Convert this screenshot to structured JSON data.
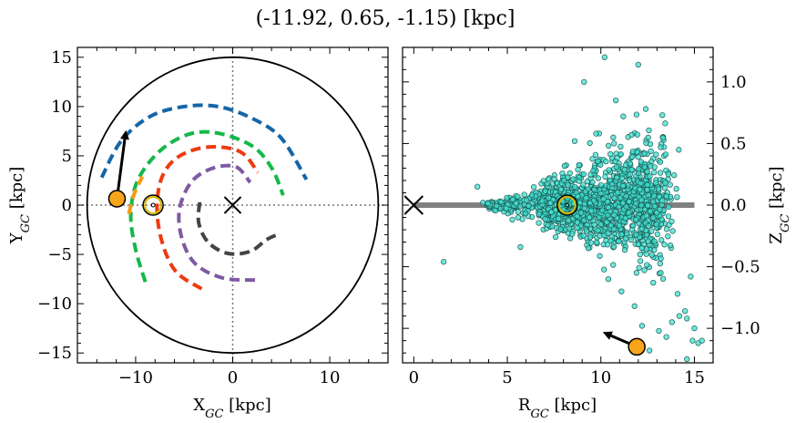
{
  "figure_title": "(-11.92, 0.65, -1.15) [kpc]",
  "chart_data": [
    {
      "type": "scatter",
      "panel": "left",
      "xlabel": "X",
      "xlabel_sub": "GC",
      "xlabel_unit": " [kpc]",
      "ylabel": "Y",
      "ylabel_sub": "GC",
      "ylabel_unit": " [kpc]",
      "xlim": [
        -16,
        16
      ],
      "ylim": [
        -16,
        16
      ],
      "xticks": [
        {
          "v": -10,
          "label": "−10"
        },
        {
          "v": 0,
          "label": "0"
        },
        {
          "v": 10,
          "label": "10"
        }
      ],
      "yticks": [
        {
          "v": 15,
          "label": "15"
        },
        {
          "v": 10,
          "label": "10"
        },
        {
          "v": 5,
          "label": "5"
        },
        {
          "v": 0,
          "label": "0"
        },
        {
          "v": -5,
          "label": "−5"
        },
        {
          "v": -10,
          "label": "−10"
        },
        {
          "v": -15,
          "label": "−15"
        }
      ],
      "boundary_circle_radius": 15,
      "galactic_center": [
        0,
        0
      ],
      "sun_position": [
        -8.2,
        0
      ],
      "object_position": [
        -11.92,
        0.65
      ],
      "velocity_arrow_tip": [
        -11.0,
        7.6
      ],
      "spiral_arms": [
        {
          "color": "#1565a8",
          "points": [
            [
              -13.5,
              2.8
            ],
            [
              -11.5,
              6.5
            ],
            [
              -8.5,
              9.0
            ],
            [
              -5,
              10.0
            ],
            [
              -1.5,
              10.0
            ],
            [
              2.0,
              8.8
            ],
            [
              5.0,
              6.8
            ],
            [
              7.6,
              2.6
            ]
          ]
        },
        {
          "color": "#14b84a",
          "points": [
            [
              -9.0,
              -7.8
            ],
            [
              -10.0,
              -4.5
            ],
            [
              -10.5,
              -1.0
            ],
            [
              -9.8,
              2.5
            ],
            [
              -7.5,
              5.5
            ],
            [
              -4.5,
              7.2
            ],
            [
              -1.5,
              7.3
            ],
            [
              2.0,
              6.0
            ],
            [
              4.0,
              3.8
            ],
            [
              5.2,
              1.0
            ]
          ]
        },
        {
          "color": "#ee3a10",
          "points": [
            [
              -3.2,
              -8.5
            ],
            [
              -5.8,
              -6.8
            ],
            [
              -7.2,
              -4.0
            ],
            [
              -7.8,
              -0.5
            ],
            [
              -7.3,
              2.8
            ],
            [
              -5.6,
              4.9
            ],
            [
              -2.5,
              5.9
            ],
            [
              0.8,
              5.4
            ],
            [
              2.6,
              3.3
            ]
          ]
        },
        {
          "color": "#7e5aa2",
          "points": [
            [
              2.3,
              -7.6
            ],
            [
              -1.0,
              -7.4
            ],
            [
              -3.8,
              -6.0
            ],
            [
              -5.2,
              -3.5
            ],
            [
              -5.5,
              -0.5
            ],
            [
              -4.3,
              2.3
            ],
            [
              -2.2,
              3.7
            ],
            [
              0.3,
              3.9
            ],
            [
              1.8,
              2.3
            ]
          ]
        },
        {
          "color": "#444444",
          "points": [
            [
              -3.4,
              0.3
            ],
            [
              -3.5,
              -1.8
            ],
            [
              -2.5,
              -3.8
            ],
            [
              -0.5,
              -4.9
            ],
            [
              1.8,
              -4.7
            ],
            [
              3.5,
              -3.5
            ],
            [
              4.6,
              -3.0
            ]
          ]
        },
        {
          "color": "#f39c12",
          "points": [
            [
              -10.7,
              -0.9
            ],
            [
              -10.2,
              1.0
            ],
            [
              -9.3,
              2.9
            ]
          ]
        }
      ]
    },
    {
      "type": "scatter",
      "panel": "right",
      "xlabel": "R",
      "xlabel_sub": "GC",
      "xlabel_unit": " [kpc]",
      "ylabel": "Z",
      "ylabel_sub": "GC",
      "ylabel_unit": " [kpc]",
      "xlim": [
        -0.6,
        16
      ],
      "ylim": [
        -1.28,
        1.28
      ],
      "xticks": [
        {
          "v": 0,
          "label": "0"
        },
        {
          "v": 5,
          "label": "5"
        },
        {
          "v": 10,
          "label": "10"
        },
        {
          "v": 15,
          "label": "15"
        }
      ],
      "yticks": [
        {
          "v": 1.0,
          "label": "1.0"
        },
        {
          "v": 0.5,
          "label": "0.5"
        },
        {
          "v": 0.0,
          "label": "0.0"
        },
        {
          "v": -0.5,
          "label": "−0.5"
        },
        {
          "v": -1.0,
          "label": "−1.0"
        }
      ],
      "disk_line": {
        "x": [
          0,
          15
        ],
        "y": 0.0
      },
      "galactic_center": [
        0,
        0
      ],
      "sun_position": [
        8.2,
        0.0
      ],
      "object_position": [
        11.92,
        -1.15
      ],
      "velocity_arrow_tip": [
        10.1,
        -1.03
      ],
      "point_color": "#40e0d0",
      "outlier_points": [
        [
          10.2,
          1.2
        ],
        [
          12.0,
          1.14
        ],
        [
          10.8,
          0.85
        ],
        [
          9.1,
          1.0
        ],
        [
          11.2,
          0.72
        ],
        [
          12.4,
          0.78
        ],
        [
          13.2,
          0.47
        ],
        [
          8.6,
          0.52
        ],
        [
          13.6,
          0.25
        ],
        [
          3.4,
          0.15
        ],
        [
          1.6,
          -0.46
        ],
        [
          5.7,
          -0.34
        ],
        [
          14.8,
          -0.58
        ],
        [
          13.2,
          -0.55
        ],
        [
          14.1,
          -0.72
        ],
        [
          12.8,
          -0.63
        ],
        [
          13.8,
          -0.95
        ],
        [
          14.2,
          -0.9
        ],
        [
          14.6,
          -0.92
        ],
        [
          13.1,
          -1.02
        ],
        [
          12.2,
          -0.98
        ],
        [
          13.5,
          -1.07
        ],
        [
          14.9,
          -1.1
        ],
        [
          15.2,
          -1.12
        ],
        [
          12.6,
          -1.18
        ],
        [
          14.5,
          -0.86
        ],
        [
          11.8,
          -0.82
        ],
        [
          15.0,
          -1.0
        ],
        [
          15.4,
          -1.1
        ],
        [
          14.6,
          -1.25
        ],
        [
          11.1,
          -0.7
        ],
        [
          10.4,
          -0.6
        ]
      ]
    }
  ]
}
